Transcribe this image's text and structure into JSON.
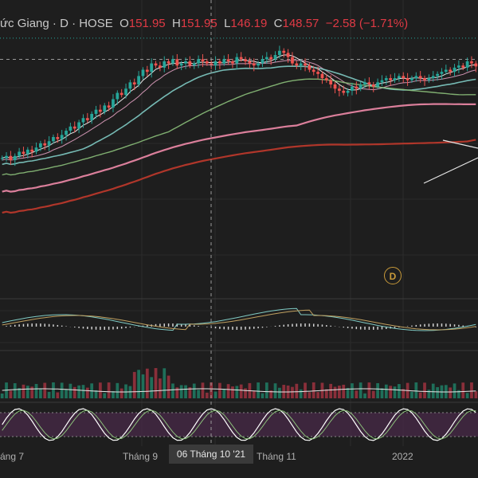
{
  "header": {
    "title": "ức Giang · D · HOSE",
    "open_label": "O",
    "open": "151.95",
    "high_label": "H",
    "high": "151.95",
    "low_label": "L",
    "low": "146.19",
    "close_label": "C",
    "close": "148.57",
    "change": "−2.58 (−1.71%)"
  },
  "crosshair_date": "06 Tháng 10 '21",
  "event_marker": "D",
  "chart_data": {
    "type": "candlestick",
    "x_tick_labels": [
      "áng 7",
      "Tháng 9",
      "Tháng 11",
      "2022"
    ],
    "price_range": [
      40,
      165
    ],
    "reference_lines": [
      162,
      151.95
    ],
    "candles_start": 105,
    "candles_path": [
      105,
      106,
      104,
      106,
      108,
      107,
      109,
      108,
      110,
      112,
      111,
      113,
      115,
      114,
      116,
      118,
      120,
      119,
      122,
      124,
      123,
      126,
      128,
      127,
      130,
      129,
      133,
      136,
      135,
      138,
      141,
      140,
      144,
      147,
      146,
      150,
      149,
      148,
      151,
      150,
      152,
      149,
      150,
      151,
      149,
      150,
      152,
      151,
      150,
      149,
      151,
      150,
      152,
      151,
      150,
      153,
      152,
      151,
      150,
      149,
      150,
      152,
      153,
      152,
      154,
      156,
      155,
      153,
      150,
      149,
      150,
      149,
      147,
      146,
      145,
      143,
      142,
      140,
      138,
      137,
      136,
      137,
      139,
      138,
      140,
      141,
      140,
      139,
      141,
      142,
      143,
      142,
      143,
      144,
      143,
      142,
      143,
      144,
      143,
      142,
      143,
      144,
      145,
      146,
      147,
      146,
      148,
      149,
      148,
      151,
      150,
      148.57
    ],
    "colors": {
      "up": "#26a69a",
      "down": "#ef5350",
      "ma_fast": "#ffffff",
      "ma_mid": "#e0a0c0",
      "ma_slow": "#80cbc4",
      "ma_long": "#8bbf7a",
      "ma_xlong": "#ef8aa8",
      "ma_xxlong": "#c0392b",
      "oscillator_band": "#4a2a4a"
    }
  }
}
